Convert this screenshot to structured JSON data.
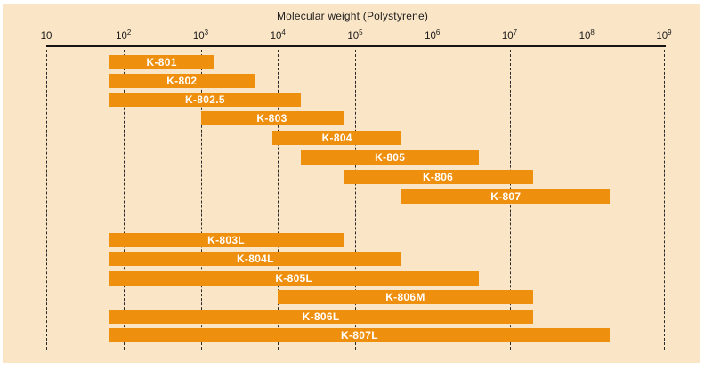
{
  "colors": {
    "bar": "#EF8F0E",
    "panel_bg": "#FAE5C6",
    "page_bg": "#FFFFFF",
    "bar_label": "#FFFFFF",
    "axis": "#151515",
    "grid": "#2A2A2A",
    "text": "#1F1F1F"
  },
  "chart_data": {
    "type": "bar",
    "orientation": "horizontal-range",
    "title": "Molecular weight (Polystyrene)",
    "xlabel": "Molecular weight (Polystyrene)",
    "ylabel": "",
    "x_axis": {
      "scale": "log10",
      "min": 10,
      "max": 1000000000,
      "tick_base": "10",
      "tick_exponents": [
        "",
        "2",
        "3",
        "4",
        "5",
        "6",
        "7",
        "8",
        "9"
      ],
      "grid": "dashed-vertical"
    },
    "legend": "none",
    "groups": [
      {
        "name": "upper-group",
        "bars": [
          {
            "label": "K-801",
            "mw_min": 65,
            "mw_max": 1500
          },
          {
            "label": "K-802",
            "mw_min": 65,
            "mw_max": 5000
          },
          {
            "label": "K-802.5",
            "mw_min": 65,
            "mw_max": 20000
          },
          {
            "label": "K-803",
            "mw_min": 1000,
            "mw_max": 70000
          },
          {
            "label": "K-804",
            "mw_min": 8500,
            "mw_max": 400000
          },
          {
            "label": "K-805",
            "mw_min": 20000,
            "mw_max": 4000000
          },
          {
            "label": "K-806",
            "mw_min": 70000,
            "mw_max": 20000000
          },
          {
            "label": "K-807",
            "mw_min": 400000,
            "mw_max": 200000000
          }
        ]
      },
      {
        "name": "lower-group",
        "bars": [
          {
            "label": "K-803L",
            "mw_min": 65,
            "mw_max": 70000
          },
          {
            "label": "K-804L",
            "mw_min": 65,
            "mw_max": 400000
          },
          {
            "label": "K-805L",
            "mw_min": 65,
            "mw_max": 4000000
          },
          {
            "label": "K-806M",
            "mw_min": 10000,
            "mw_max": 20000000
          },
          {
            "label": "K-806L",
            "mw_min": 65,
            "mw_max": 20000000
          },
          {
            "label": "K-807L",
            "mw_min": 65,
            "mw_max": 200000000
          }
        ]
      }
    ]
  }
}
